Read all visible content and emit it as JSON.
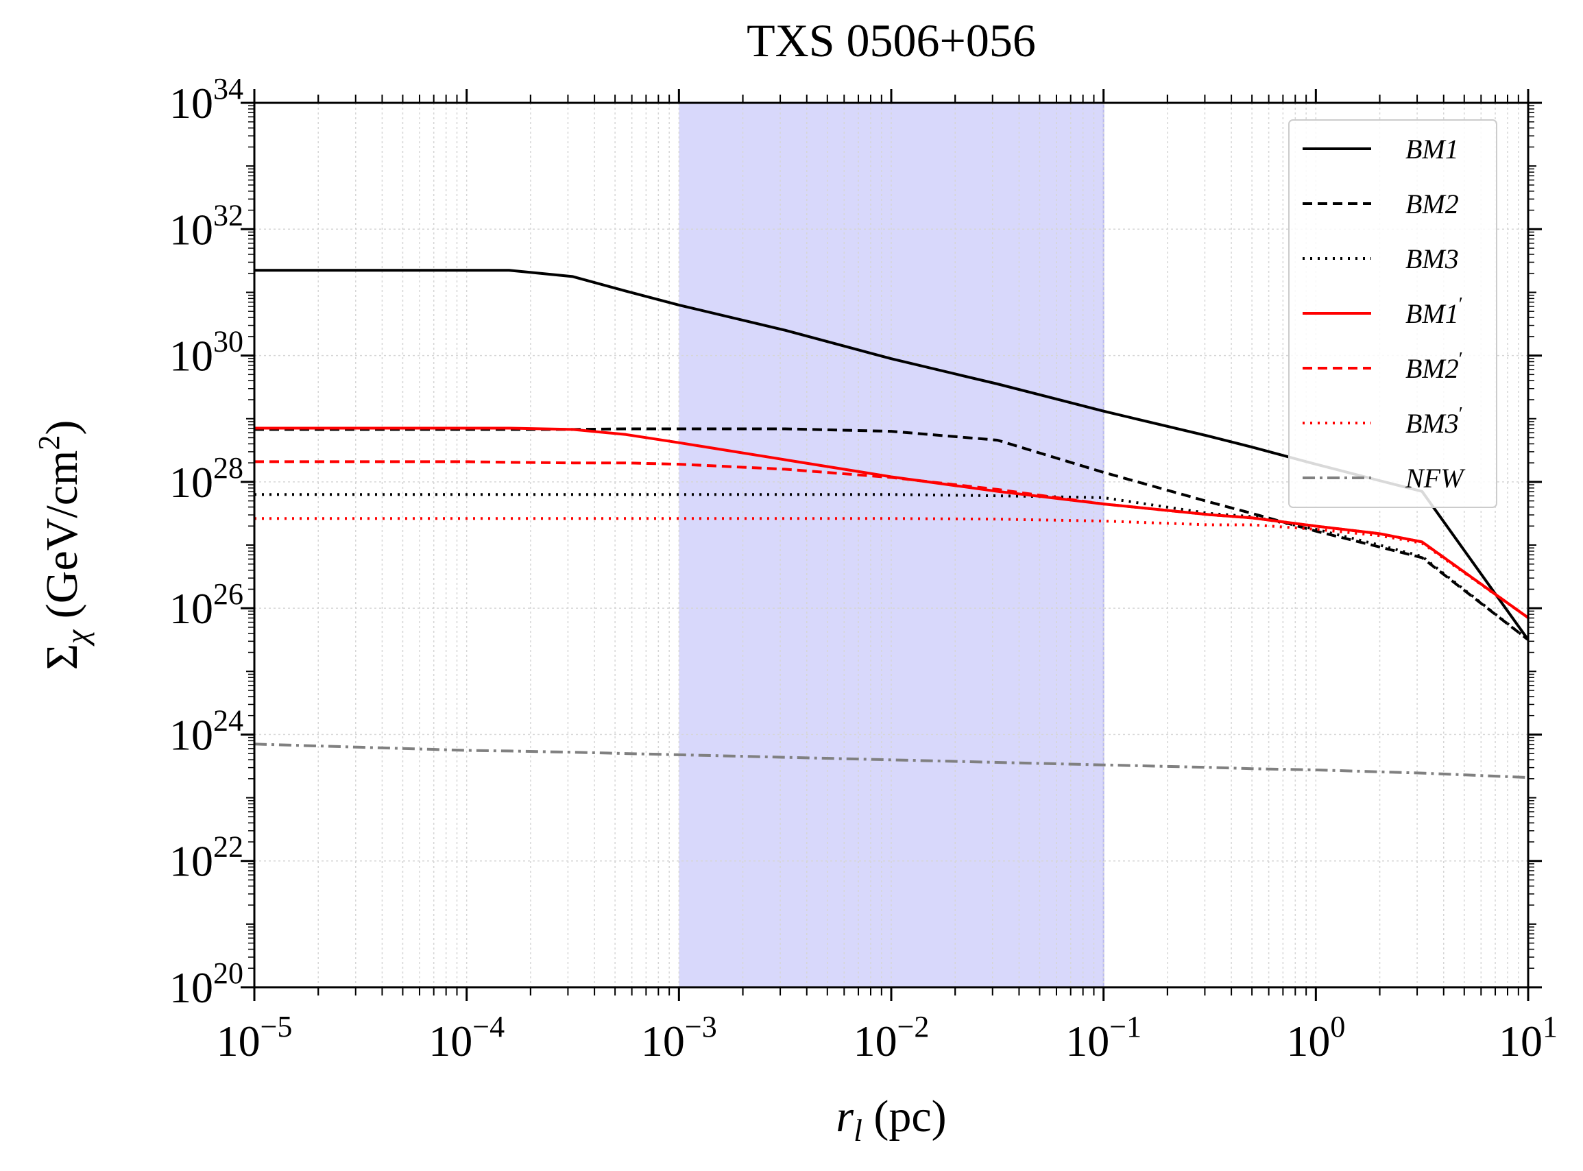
{
  "chart_data": {
    "type": "line",
    "title": "TXS 0506+056",
    "xlabel": {
      "main": "r",
      "sub": "l",
      "unit": " (pc)"
    },
    "ylabel": {
      "main": "Σ",
      "sub": "χ",
      "unit": " (GeV/cm",
      "sup": "2",
      "close": ")"
    },
    "xscale": "log",
    "yscale": "log",
    "xlim": [
      1e-05,
      10
    ],
    "ylim": [
      1e+20,
      1e+34
    ],
    "xticks": [
      {
        "base": "10",
        "exp": "−5",
        "value": -5
      },
      {
        "base": "10",
        "exp": "−4",
        "value": -4
      },
      {
        "base": "10",
        "exp": "−3",
        "value": -3
      },
      {
        "base": "10",
        "exp": "−2",
        "value": -2
      },
      {
        "base": "10",
        "exp": "−1",
        "value": -1
      },
      {
        "base": "10",
        "exp": "0",
        "value": 0
      },
      {
        "base": "10",
        "exp": "1",
        "value": 1
      }
    ],
    "yticks": [
      {
        "base": "10",
        "exp": "20",
        "value": 20
      },
      {
        "base": "10",
        "exp": "22",
        "value": 22
      },
      {
        "base": "10",
        "exp": "24",
        "value": 24
      },
      {
        "base": "10",
        "exp": "26",
        "value": 26
      },
      {
        "base": "10",
        "exp": "28",
        "value": 28
      },
      {
        "base": "10",
        "exp": "30",
        "value": 30
      },
      {
        "base": "10",
        "exp": "32",
        "value": 32
      },
      {
        "base": "10",
        "exp": "34",
        "value": 34
      }
    ],
    "grid": true,
    "shaded_region": {
      "x_range": [
        0.001,
        0.1
      ],
      "color": "#d8d8fb"
    },
    "legend": {
      "position": "top-right"
    },
    "log_x": [
      -5,
      -4.5,
      -4,
      -3.8,
      -3.5,
      -3.25,
      -3,
      -2.5,
      -2,
      -1.5,
      -1,
      -0.5,
      -0.3,
      0,
      0.3,
      0.5,
      1
    ],
    "series": [
      {
        "name": "BM1",
        "prime": false,
        "color": "#000000",
        "style": "solid",
        "log_y": [
          31.35,
          31.35,
          31.35,
          31.35,
          31.25,
          31.02,
          30.8,
          30.4,
          29.95,
          29.55,
          29.12,
          28.72,
          28.55,
          28.28,
          28.02,
          27.85,
          25.5
        ]
      },
      {
        "name": "BM2",
        "prime": false,
        "color": "#000000",
        "style": "dashed",
        "log_y": [
          28.83,
          28.83,
          28.83,
          28.83,
          28.83,
          28.84,
          28.84,
          28.84,
          28.8,
          28.66,
          28.15,
          27.68,
          27.5,
          27.22,
          26.97,
          26.8,
          25.5
        ]
      },
      {
        "name": "BM3",
        "prime": false,
        "color": "#000000",
        "style": "dotted",
        "log_y": [
          27.8,
          27.8,
          27.8,
          27.8,
          27.8,
          27.8,
          27.8,
          27.8,
          27.8,
          27.78,
          27.75,
          27.5,
          27.45,
          27.25,
          27.0,
          26.82,
          25.5
        ]
      },
      {
        "name": "BM1",
        "prime": true,
        "color": "#ff0000",
        "style": "solid",
        "log_y": [
          28.85,
          28.85,
          28.85,
          28.85,
          28.83,
          28.75,
          28.62,
          28.35,
          28.08,
          27.85,
          27.65,
          27.48,
          27.43,
          27.3,
          27.18,
          27.05,
          25.85
        ]
      },
      {
        "name": "BM2",
        "prime": true,
        "color": "#ff0000",
        "style": "dashed",
        "log_y": [
          28.32,
          28.32,
          28.32,
          28.31,
          28.3,
          28.3,
          28.28,
          28.2,
          28.07,
          27.88,
          27.65,
          27.48,
          27.43,
          27.3,
          27.18,
          27.05,
          25.85
        ]
      },
      {
        "name": "BM3",
        "prime": true,
        "color": "#ff0000",
        "style": "dotted",
        "log_y": [
          27.42,
          27.42,
          27.42,
          27.42,
          27.42,
          27.42,
          27.42,
          27.42,
          27.42,
          27.41,
          27.38,
          27.32,
          27.32,
          27.25,
          27.15,
          27.03,
          25.85
        ]
      },
      {
        "name": "NFW",
        "prime": false,
        "color": "#808080",
        "style": "dashdot",
        "log_y": [
          23.85,
          23.8,
          23.75,
          23.74,
          23.72,
          23.7,
          23.68,
          23.64,
          23.6,
          23.56,
          23.52,
          23.48,
          23.46,
          23.44,
          23.41,
          23.39,
          23.32
        ]
      }
    ]
  }
}
